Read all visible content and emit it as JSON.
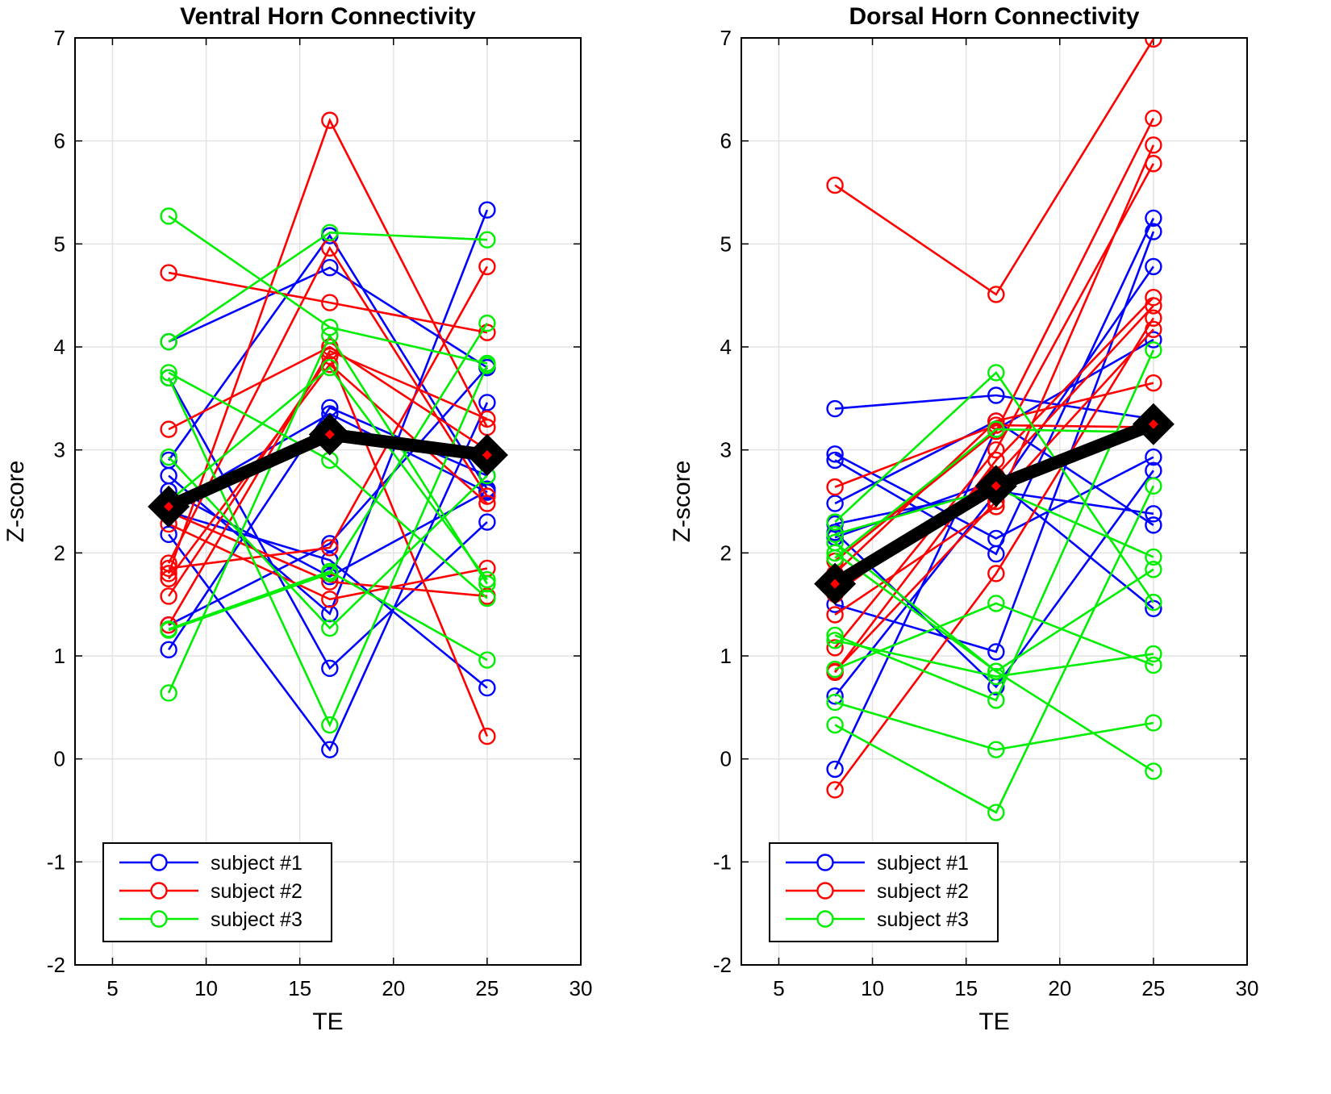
{
  "chart_data": [
    {
      "type": "line",
      "title": "Ventral Horn Connectivity",
      "xlabel": "TE",
      "ylabel": "Z-score",
      "xlim": [
        3,
        30
      ],
      "ylim": [
        -2,
        7
      ],
      "xticks": [
        5,
        10,
        15,
        20,
        25,
        30
      ],
      "yticks": [
        -2,
        -1,
        0,
        1,
        2,
        3,
        4,
        5,
        6,
        7
      ],
      "x": [
        8,
        16.6,
        25
      ],
      "grid": true,
      "legend_position": "bottom-left",
      "legend": [
        "subject #1",
        "subject #2",
        "subject #3"
      ],
      "colors": {
        "subject #1": "#0000ff",
        "subject #2": "#ff0000",
        "subject #3": "#00ee00",
        "mean": "#000000",
        "mean_marker": "#ff0000"
      },
      "series": [
        {
          "name": "subject #1",
          "lines": [
            [
              4.05,
              4.77,
              3.8
            ],
            [
              2.9,
              5.08,
              2.62
            ],
            [
              2.75,
              1.41,
              5.33
            ],
            [
              2.18,
              0.09,
              3.46
            ],
            [
              1.06,
              3.41,
              2.75
            ],
            [
              3.7,
              0.88,
              2.3
            ],
            [
              2.4,
              1.93,
              0.69
            ],
            [
              1.3,
              2.09,
              3.8
            ],
            [
              2.6,
              1.77,
              2.6
            ],
            [
              2.45,
              3.35,
              2.59
            ]
          ]
        },
        {
          "name": "subject #2",
          "lines": [
            [
              4.72,
              4.43,
              4.14
            ],
            [
              3.2,
              4.0,
              3.0
            ],
            [
              1.8,
              6.2,
              3.22
            ],
            [
              1.9,
              4.96,
              2.55
            ],
            [
              1.58,
              3.91,
              0.22
            ],
            [
              1.3,
              3.96,
              3.3
            ],
            [
              2.28,
              1.55,
              1.85
            ],
            [
              1.85,
              2.05,
              4.78
            ],
            [
              2.4,
              1.72,
              1.58
            ],
            [
              1.75,
              3.83,
              2.48
            ]
          ]
        },
        {
          "name": "subject #3",
          "lines": [
            [
              5.27,
              4.19,
              3.84
            ],
            [
              4.05,
              5.11,
              5.04
            ],
            [
              3.75,
              2.9,
              1.56
            ],
            [
              2.93,
              1.27,
              2.75
            ],
            [
              1.26,
              1.82,
              0.96
            ],
            [
              0.64,
              4.11,
              1.7
            ],
            [
              3.7,
              0.33,
              3.82
            ],
            [
              2.5,
              3.8,
              1.74
            ],
            [
              1.25,
              1.8,
              4.23
            ]
          ]
        },
        {
          "name": "mean",
          "values": [
            2.45,
            3.15,
            2.95
          ]
        }
      ]
    },
    {
      "type": "line",
      "title": "Dorsal Horn Connectivity",
      "xlabel": "TE",
      "ylabel": "Z-score",
      "xlim": [
        3,
        30
      ],
      "ylim": [
        -2,
        7
      ],
      "xticks": [
        5,
        10,
        15,
        20,
        25,
        30
      ],
      "yticks": [
        -2,
        -1,
        0,
        1,
        2,
        3,
        4,
        5,
        6,
        7
      ],
      "x": [
        8,
        16.6,
        25
      ],
      "grid": true,
      "legend_position": "bottom-left",
      "legend": [
        "subject #1",
        "subject #2",
        "subject #3"
      ],
      "colors": {
        "subject #1": "#0000ff",
        "subject #2": "#ff0000",
        "subject #3": "#00ee00",
        "mean": "#000000",
        "mean_marker": "#ff0000"
      },
      "series": [
        {
          "name": "subject #1",
          "lines": [
            [
              3.4,
              3.53,
              3.3
            ],
            [
              2.96,
              2.14,
              2.93
            ],
            [
              2.9,
              1.99,
              5.25
            ],
            [
              2.48,
              3.28,
              2.27
            ],
            [
              2.28,
              2.6,
              2.38
            ],
            [
              2.2,
              0.7,
              2.8
            ],
            [
              1.5,
              1.04,
              5.12
            ],
            [
              0.61,
              2.58,
              4.78
            ],
            [
              -0.1,
              3.2,
              4.07
            ],
            [
              2.15,
              2.7,
              1.46
            ]
          ]
        },
        {
          "name": "subject #2",
          "lines": [
            [
              5.57,
              4.51,
              6.99
            ],
            [
              2.64,
              3.24,
              3.22
            ],
            [
              1.92,
              3.18,
              6.22
            ],
            [
              1.4,
              2.45,
              5.96
            ],
            [
              1.08,
              3.0,
              5.78
            ],
            [
              0.84,
              2.9,
              4.48
            ],
            [
              -0.3,
              1.8,
              4.28
            ],
            [
              1.6,
              2.75,
              4.4
            ],
            [
              1.8,
              3.28,
              3.65
            ],
            [
              0.85,
              2.5,
              4.17
            ]
          ]
        },
        {
          "name": "subject #3",
          "lines": [
            [
              2.3,
              3.75,
              1.52
            ],
            [
              2.18,
              2.63,
              1.96
            ],
            [
              2.0,
              0.85,
              1.84
            ],
            [
              1.95,
              3.2,
              3.17
            ],
            [
              1.2,
              0.57,
              3.97
            ],
            [
              1.15,
              0.8,
              1.02
            ],
            [
              0.87,
              1.51,
              0.91
            ],
            [
              0.55,
              0.09,
              0.35
            ],
            [
              0.33,
              -0.52,
              2.65
            ],
            [
              2.1,
              0.85,
              -0.12
            ]
          ]
        },
        {
          "name": "mean",
          "values": [
            1.7,
            2.65,
            3.25
          ]
        }
      ]
    }
  ]
}
